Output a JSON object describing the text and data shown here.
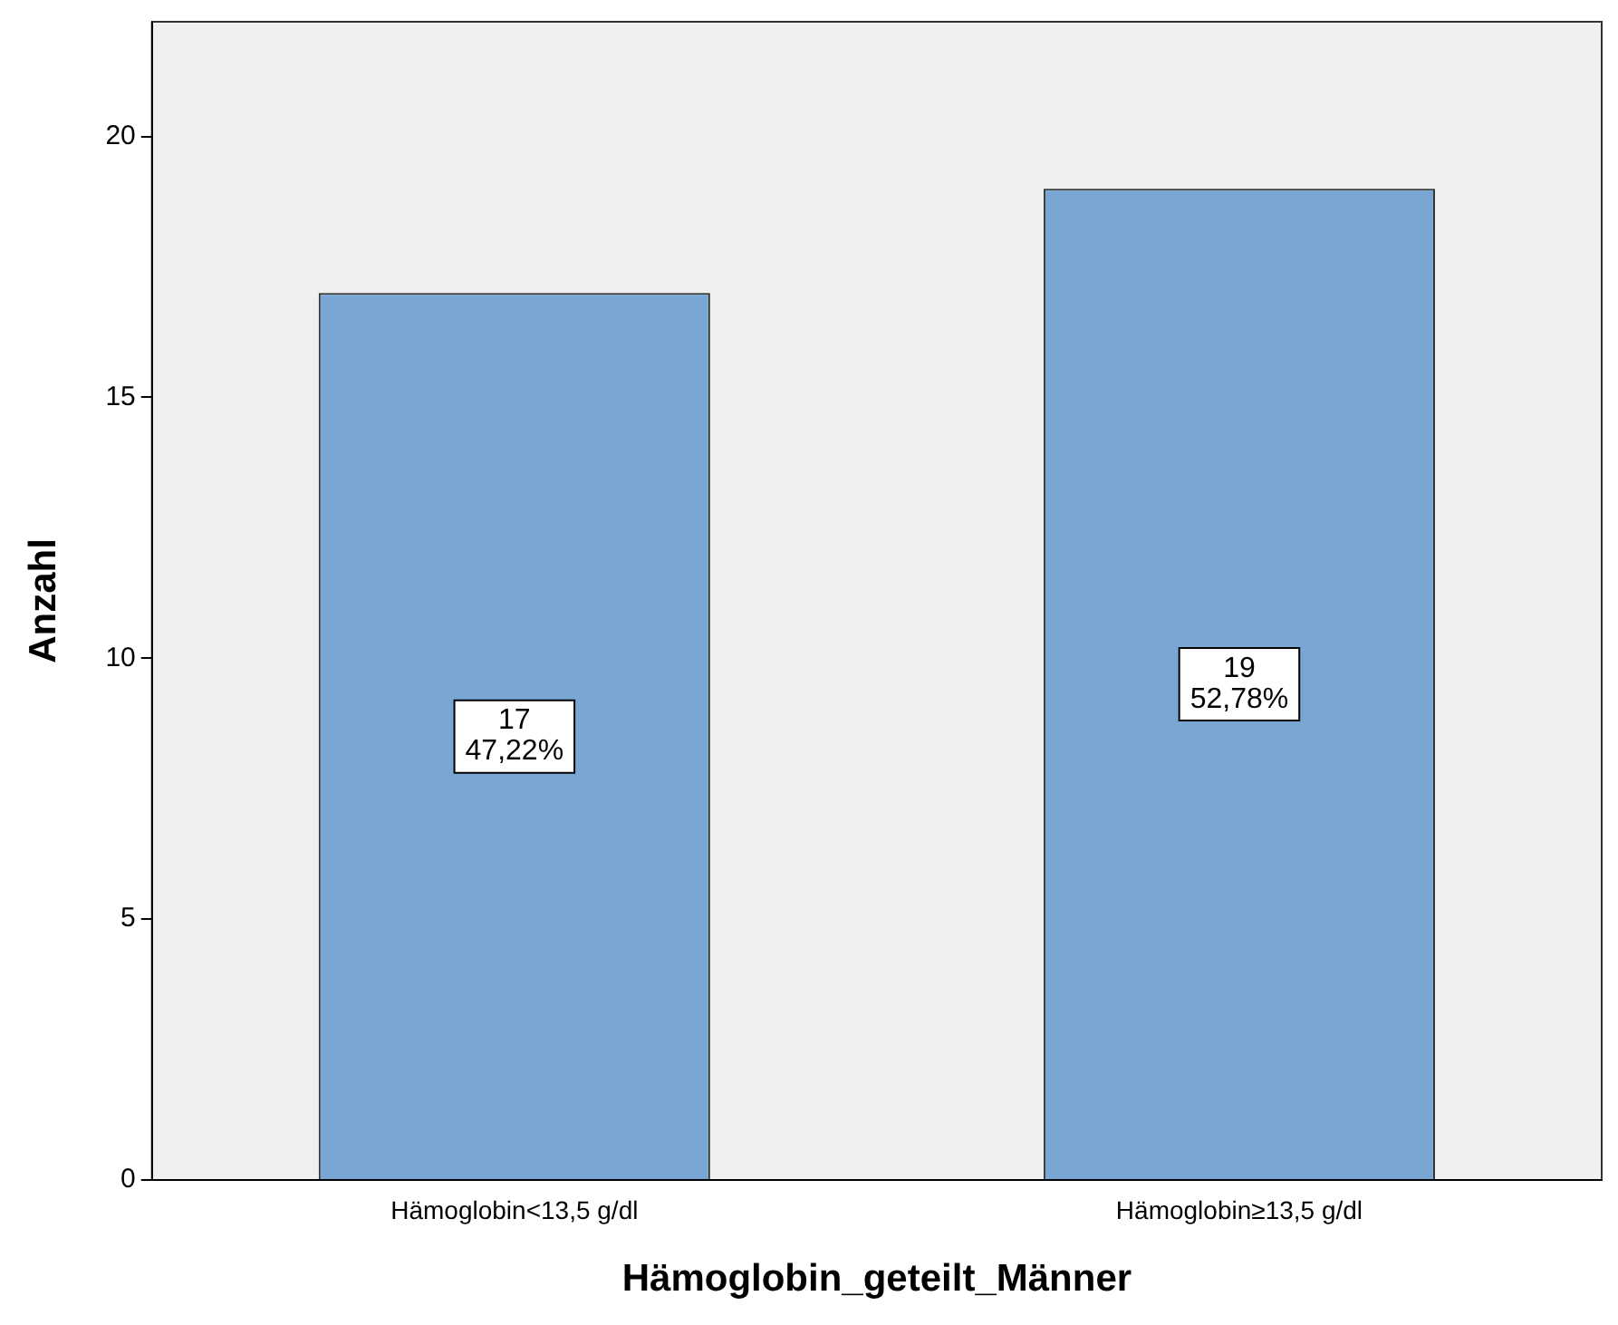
{
  "chart_data": {
    "type": "bar",
    "xlabel": "Hämoglobin_geteilt_Männer",
    "ylabel": "Anzahl",
    "categories": [
      "Hämoglobin<13,5 g/dl",
      "Hämoglobin≥13,5 g/dl"
    ],
    "values": [
      17,
      19
    ],
    "color": "#79a6d2",
    "value_labels": [
      "17\n47,22%",
      "19\n52,78%"
    ],
    "ylim": [
      0,
      22.2
    ],
    "yticks": [
      0,
      5,
      10,
      15,
      20
    ],
    "grid": false,
    "legend": false
  }
}
